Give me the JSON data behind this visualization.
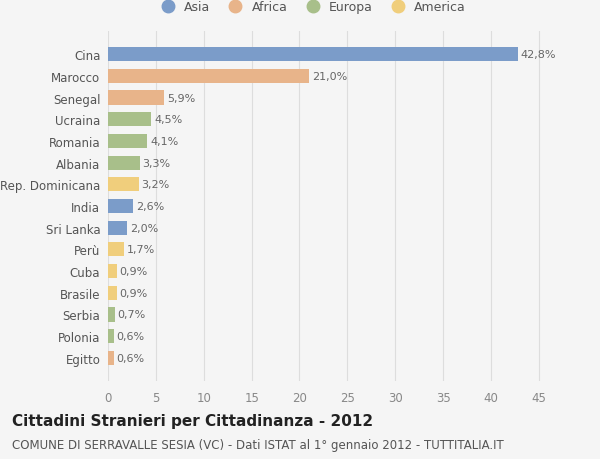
{
  "countries": [
    "Cina",
    "Marocco",
    "Senegal",
    "Ucraina",
    "Romania",
    "Albania",
    "Rep. Dominicana",
    "India",
    "Sri Lanka",
    "Perù",
    "Cuba",
    "Brasile",
    "Serbia",
    "Polonia",
    "Egitto"
  ],
  "values": [
    42.8,
    21.0,
    5.9,
    4.5,
    4.1,
    3.3,
    3.2,
    2.6,
    2.0,
    1.7,
    0.9,
    0.9,
    0.7,
    0.6,
    0.6
  ],
  "labels": [
    "42,8%",
    "21,0%",
    "5,9%",
    "4,5%",
    "4,1%",
    "3,3%",
    "3,2%",
    "2,6%",
    "2,0%",
    "1,7%",
    "0,9%",
    "0,9%",
    "0,7%",
    "0,6%",
    "0,6%"
  ],
  "colors": [
    "#7b9cc9",
    "#e8b48a",
    "#e8b48a",
    "#a8bf8a",
    "#a8bf8a",
    "#a8bf8a",
    "#f0ce7c",
    "#7b9cc9",
    "#7b9cc9",
    "#f0ce7c",
    "#f0ce7c",
    "#f0ce7c",
    "#a8bf8a",
    "#a8bf8a",
    "#e8b48a"
  ],
  "legend_labels": [
    "Asia",
    "Africa",
    "Europa",
    "America"
  ],
  "legend_colors": [
    "#7b9cc9",
    "#e8b48a",
    "#a8bf8a",
    "#f0ce7c"
  ],
  "title": "Cittadini Stranieri per Cittadinanza - 2012",
  "subtitle": "COMUNE DI SERRAVALLE SESIA (VC) - Dati ISTAT al 1° gennaio 2012 - TUTTITALIA.IT",
  "xlim": [
    0,
    47
  ],
  "xticks": [
    0,
    5,
    10,
    15,
    20,
    25,
    30,
    35,
    40,
    45
  ],
  "background_color": "#f5f5f5",
  "bar_height": 0.65,
  "title_fontsize": 11,
  "subtitle_fontsize": 8.5,
  "label_fontsize": 8,
  "tick_fontsize": 8.5,
  "grid_color": "#dddddd"
}
